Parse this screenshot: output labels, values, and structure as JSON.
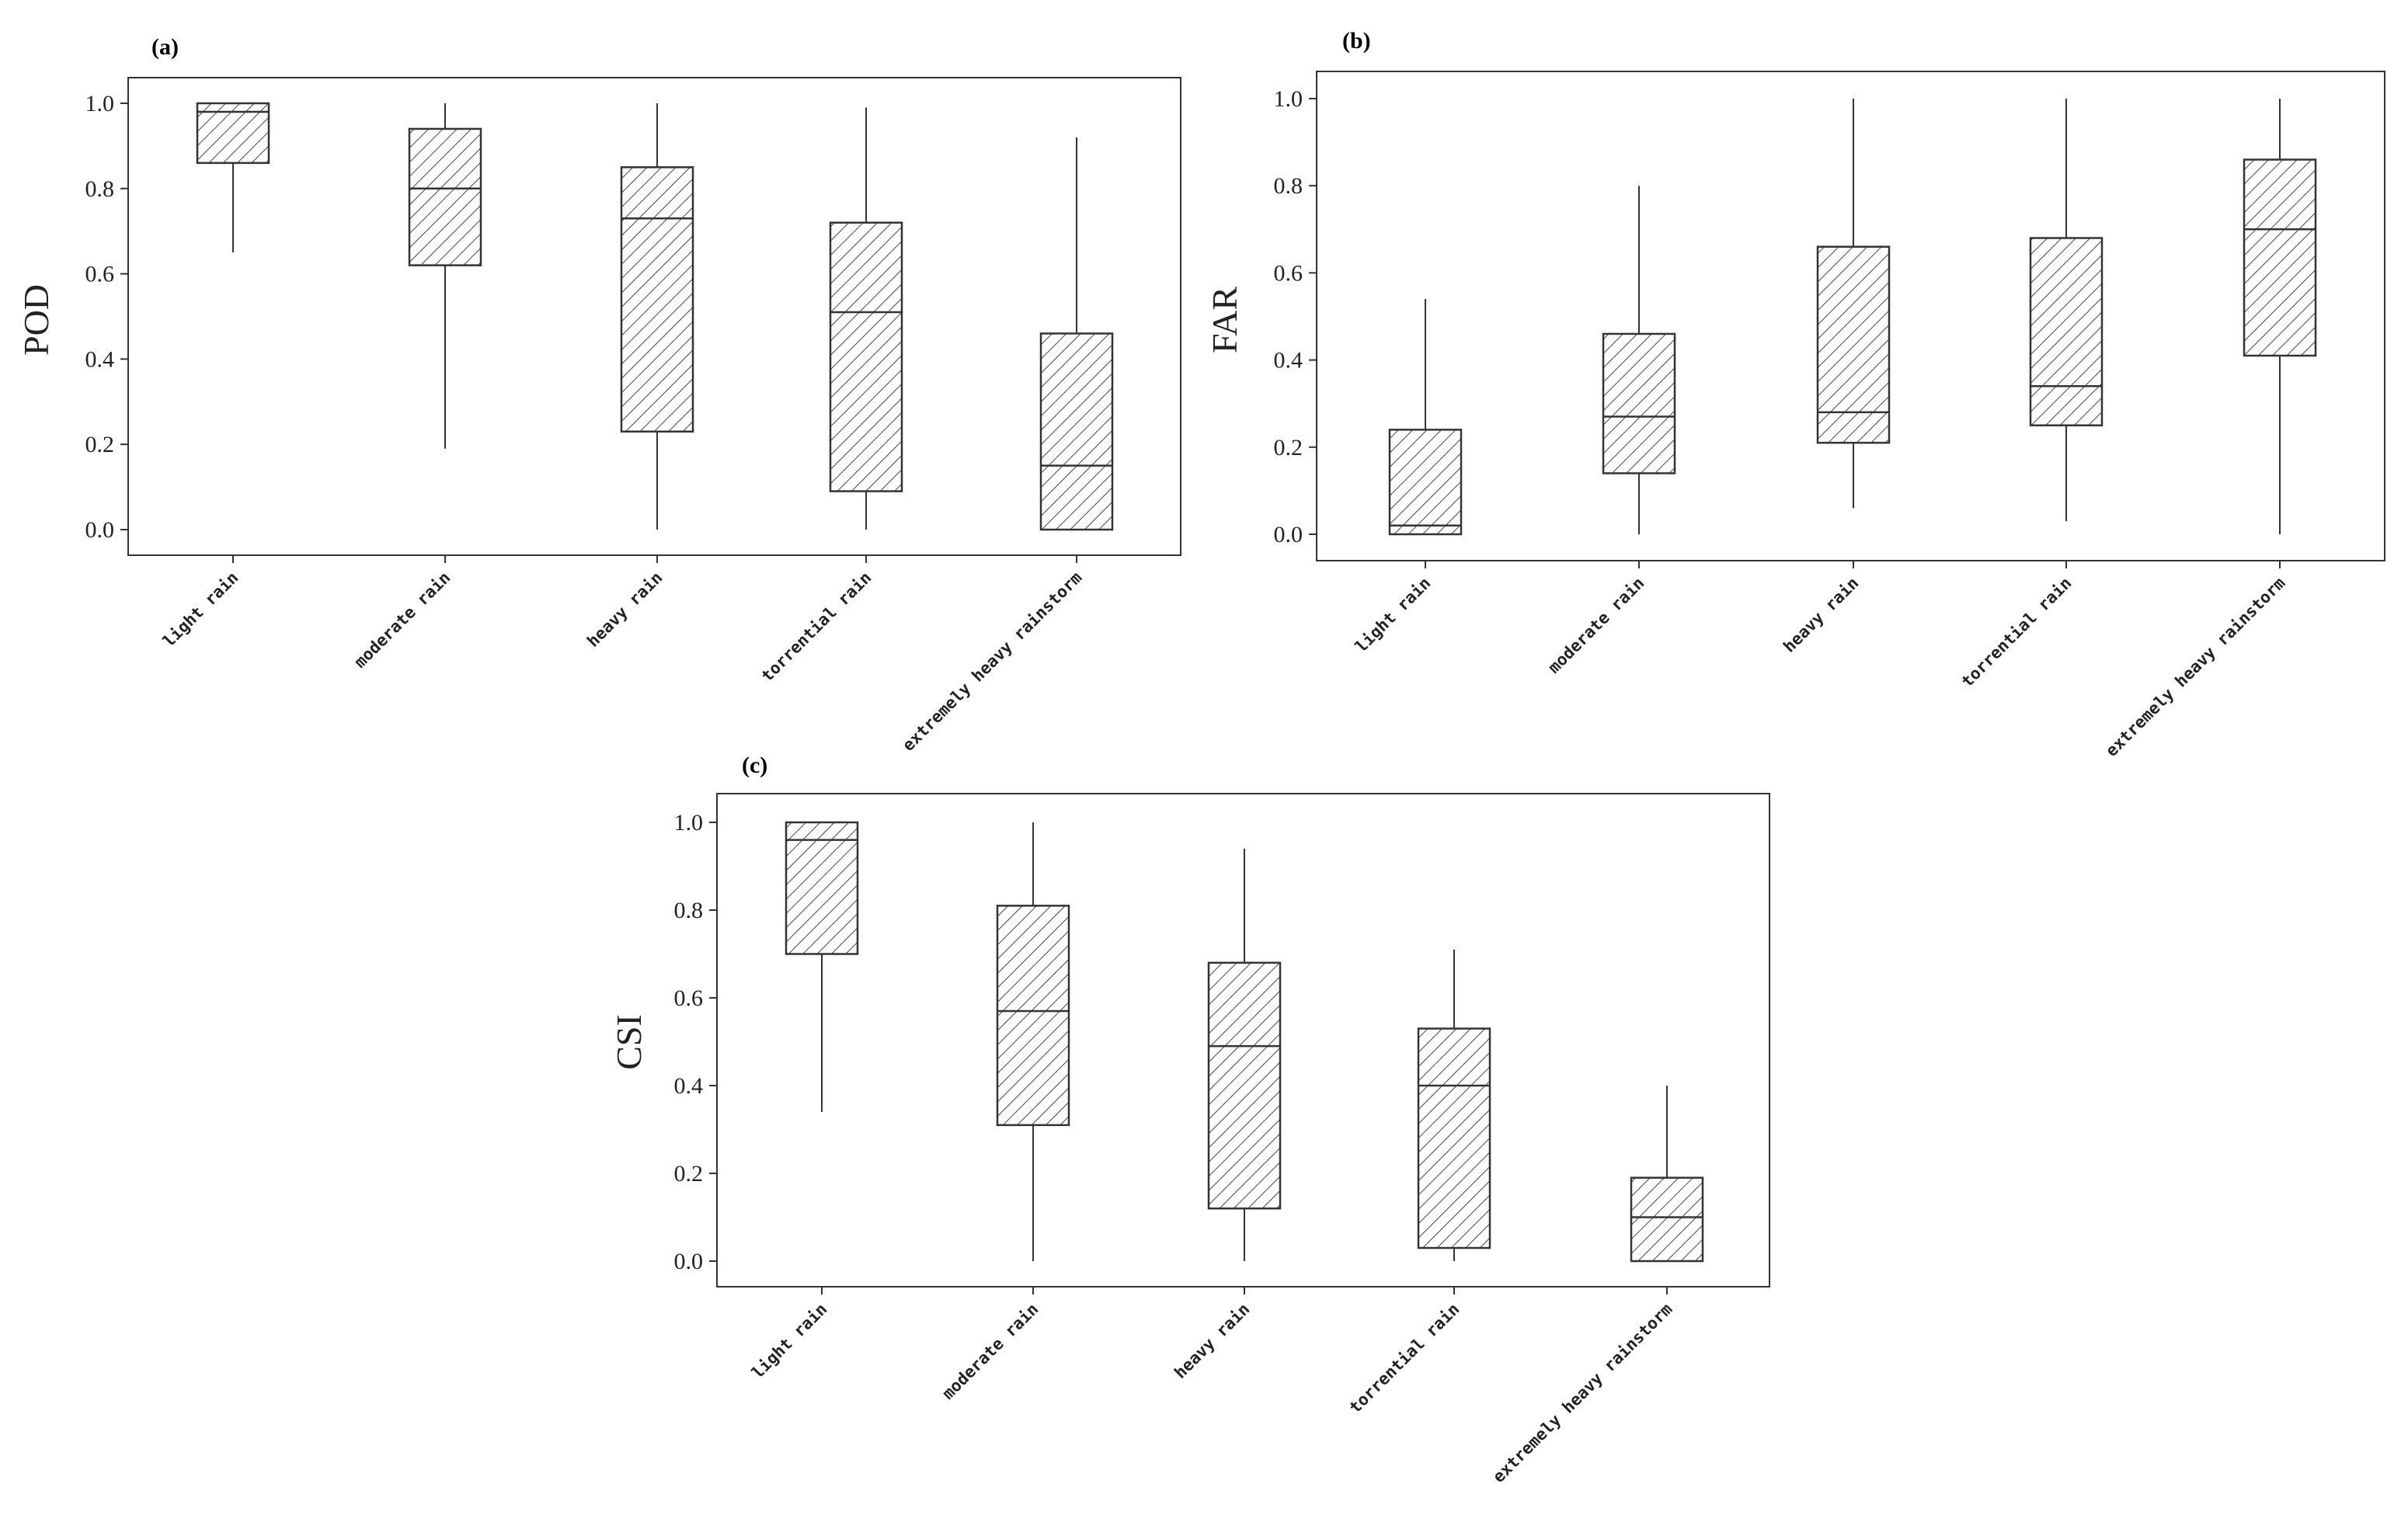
{
  "chart_data": [
    {
      "panel": "(a)",
      "type": "box",
      "ylabel": "POD",
      "ylim": [
        0.0,
        1.0
      ],
      "yticks": [
        "0.0",
        "0.2",
        "0.4",
        "0.6",
        "0.8",
        "1.0"
      ],
      "categories": [
        "light rain",
        "moderate rain",
        "heavy rain",
        "torrential rain",
        "extremely heavy rainstorm"
      ],
      "boxes": [
        {
          "min": 0.65,
          "q1": 0.86,
          "median": 0.98,
          "q3": 1.0,
          "max": 1.0
        },
        {
          "min": 0.19,
          "q1": 0.62,
          "median": 0.8,
          "q3": 0.94,
          "max": 1.0
        },
        {
          "min": 0.0,
          "q1": 0.23,
          "median": 0.73,
          "q3": 0.85,
          "max": 1.0
        },
        {
          "min": 0.0,
          "q1": 0.09,
          "median": 0.51,
          "q3": 0.72,
          "max": 0.99
        },
        {
          "min": 0.0,
          "q1": 0.0,
          "median": 0.15,
          "q3": 0.46,
          "max": 0.92
        }
      ]
    },
    {
      "panel": "(b)",
      "type": "box",
      "ylabel": "FAR",
      "ylim": [
        0.0,
        1.0
      ],
      "yticks": [
        "0.0",
        "0.2",
        "0.4",
        "0.6",
        "0.8",
        "1.0"
      ],
      "categories": [
        "light rain",
        "moderate rain",
        "heavy rain",
        "torrential rain",
        "extremely heavy rainstorm"
      ],
      "boxes": [
        {
          "min": 0.0,
          "q1": 0.0,
          "median": 0.02,
          "q3": 0.24,
          "max": 0.54
        },
        {
          "min": 0.0,
          "q1": 0.14,
          "median": 0.27,
          "q3": 0.46,
          "max": 0.8
        },
        {
          "min": 0.06,
          "q1": 0.21,
          "median": 0.28,
          "q3": 0.66,
          "max": 1.0
        },
        {
          "min": 0.03,
          "q1": 0.25,
          "median": 0.34,
          "q3": 0.68,
          "max": 1.0
        },
        {
          "min": 0.0,
          "q1": 0.41,
          "median": 0.7,
          "q3": 0.86,
          "max": 1.0
        }
      ]
    },
    {
      "panel": "(c)",
      "type": "box",
      "ylabel": "CSI",
      "ylim": [
        0.0,
        1.0
      ],
      "yticks": [
        "0.0",
        "0.2",
        "0.4",
        "0.6",
        "0.8",
        "1.0"
      ],
      "categories": [
        "light rain",
        "moderate rain",
        "heavy rain",
        "torrential rain",
        "extremely heavy rainstorm"
      ],
      "boxes": [
        {
          "min": 0.34,
          "q1": 0.7,
          "median": 0.96,
          "q3": 1.0,
          "max": 1.0
        },
        {
          "min": 0.0,
          "q1": 0.31,
          "median": 0.57,
          "q3": 0.81,
          "max": 1.0
        },
        {
          "min": 0.0,
          "q1": 0.12,
          "median": 0.49,
          "q3": 0.68,
          "max": 0.94
        },
        {
          "min": 0.0,
          "q1": 0.03,
          "median": 0.4,
          "q3": 0.53,
          "max": 0.71
        },
        {
          "min": 0.0,
          "q1": 0.0,
          "median": 0.1,
          "q3": 0.19,
          "max": 0.4
        }
      ]
    }
  ]
}
